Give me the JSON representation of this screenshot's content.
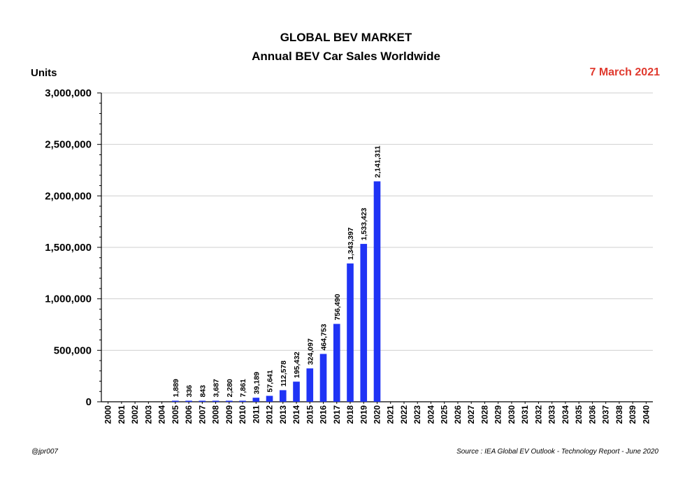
{
  "header": {
    "title": "GLOBAL BEV MARKET",
    "subtitle": "Annual BEV Car Sales Worldwide",
    "units_label": "Units",
    "date": "7 March 2021"
  },
  "footer": {
    "author": "@jpr007",
    "source": "Source : IEA Global EV Outlook - Technology Report - June 2020"
  },
  "colors": {
    "bar": "#1f33f5",
    "date": "#e03a2f",
    "grid": "#cfcfcf"
  },
  "chart_data": {
    "type": "bar",
    "title": "GLOBAL BEV MARKET",
    "subtitle": "Annual BEV Car Sales Worldwide",
    "ylabel": "Units",
    "ylim": [
      0,
      3000000
    ],
    "yticks": [
      0,
      500000,
      1000000,
      1500000,
      2000000,
      2500000,
      3000000
    ],
    "ytick_labels": [
      "0",
      "500,000",
      "1,000,000",
      "1,500,000",
      "2,000,000",
      "2,500,000",
      "3,000,000"
    ],
    "grid": true,
    "categories": [
      "2000",
      "2001",
      "2002",
      "2003",
      "2004",
      "2005",
      "2006",
      "2007",
      "2008",
      "2009",
      "2010",
      "2011",
      "2012",
      "2013",
      "2014",
      "2015",
      "2016",
      "2017",
      "2018",
      "2019",
      "2020",
      "2021",
      "2022",
      "2023",
      "2024",
      "2025",
      "2026",
      "2027",
      "2028",
      "2029",
      "2030",
      "2031",
      "2032",
      "2033",
      "2034",
      "2035",
      "2036",
      "2037",
      "2038",
      "2039",
      "2040"
    ],
    "values": [
      null,
      null,
      null,
      null,
      null,
      1889,
      336,
      843,
      3687,
      2280,
      7861,
      39189,
      57641,
      112578,
      195432,
      324097,
      464753,
      756490,
      1343397,
      1533423,
      2141311,
      null,
      null,
      null,
      null,
      null,
      null,
      null,
      null,
      null,
      null,
      null,
      null,
      null,
      null,
      null,
      null,
      null,
      null,
      null,
      null
    ],
    "value_labels": [
      null,
      null,
      null,
      null,
      null,
      "1,889",
      "336",
      "843",
      "3,687",
      "2,280",
      "7,861",
      "39,189",
      "57,641",
      "112,578",
      "195,432",
      "324,097",
      "464,753",
      "756,490",
      "1,343,397",
      "1,533,423",
      "2,141,311",
      null,
      null,
      null,
      null,
      null,
      null,
      null,
      null,
      null,
      null,
      null,
      null,
      null,
      null,
      null,
      null,
      null,
      null,
      null,
      null
    ]
  }
}
